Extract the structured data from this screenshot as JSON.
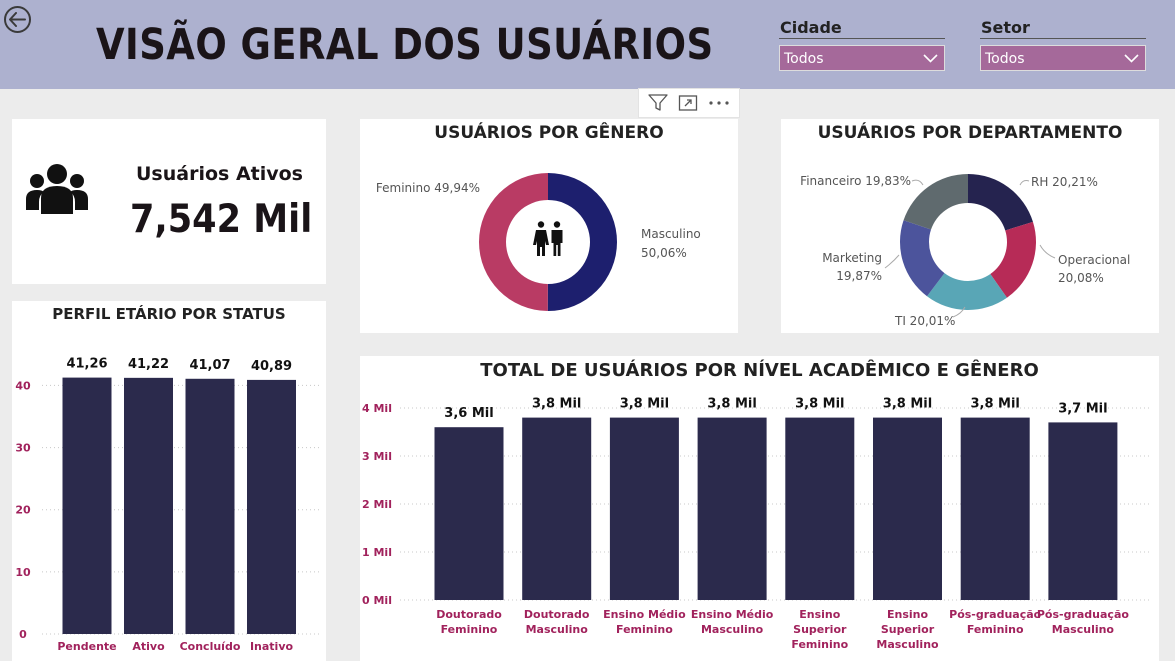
{
  "header": {
    "title": "VISÃO GERAL DOS USUÁRIOS",
    "back_icon": "back-arrow-icon",
    "bg_color": "#adb1cf"
  },
  "filters": [
    {
      "label": "Cidade",
      "value": "Todos"
    },
    {
      "label": "Setor",
      "value": "Todos"
    }
  ],
  "visual_header": {
    "icons": [
      "filter-icon",
      "focus-mode-icon",
      "more-options-icon"
    ]
  },
  "kpi": {
    "label": "Usuários Ativos",
    "value": "7,542 Mil",
    "icon": "users-icon"
  },
  "gender_chart": {
    "title": "USUÁRIOS POR GÊNERO",
    "icon": "man-woman-icon"
  },
  "department_chart": {
    "title": "USUÁRIOS POR DEPARTAMENTO"
  },
  "age_chart": {
    "title": "PERFIL ETÁRIO POR STATUS"
  },
  "academic_chart": {
    "title": "TOTAL DE USUÁRIOS POR NÍVEL ACADÊMICO E GÊNERO"
  },
  "colors": {
    "bar": "#2b2a4c",
    "axis_label": "#a1225c",
    "female": "#b93b64",
    "male": "#1d1f6e"
  },
  "chart_data": [
    {
      "id": "gender",
      "type": "pie",
      "title": "USUÁRIOS POR GÊNERO",
      "slices": [
        {
          "name": "Masculino",
          "value": 50.06,
          "label": "Masculino 50,06%",
          "color": "#1d1f6e"
        },
        {
          "name": "Feminino",
          "value": 49.94,
          "label": "Feminino 49,94%",
          "color": "#b93b64"
        }
      ]
    },
    {
      "id": "department",
      "type": "pie",
      "title": "USUÁRIOS POR DEPARTAMENTO",
      "slices": [
        {
          "name": "RH",
          "value": 20.21,
          "label": "RH 20,21%",
          "color": "#25234f"
        },
        {
          "name": "Operacional",
          "value": 20.08,
          "label": "Operacional 20,08%",
          "color": "#b72b57"
        },
        {
          "name": "TI",
          "value": 20.01,
          "label": "TI 20,01%",
          "color": "#59a6b6"
        },
        {
          "name": "Marketing",
          "value": 19.87,
          "label": "Marketing 19,87%",
          "color": "#4c549c"
        },
        {
          "name": "Financeiro",
          "value": 19.83,
          "label": "Financeiro 19,83%",
          "color": "#5f6a6e"
        }
      ]
    },
    {
      "id": "age",
      "type": "bar",
      "title": "PERFIL ETÁRIO POR STATUS",
      "categories": [
        "Pendente",
        "Ativo",
        "Concluído",
        "Inativo"
      ],
      "values": [
        41.26,
        41.22,
        41.07,
        40.89
      ],
      "data_labels": [
        "41,26",
        "41,22",
        "41,07",
        "40,89"
      ],
      "ylim": [
        0,
        42
      ],
      "yticks": [
        0,
        10,
        20,
        30,
        40
      ]
    },
    {
      "id": "academic",
      "type": "bar",
      "title": "TOTAL DE USUÁRIOS POR NÍVEL ACADÊMICO E GÊNERO",
      "categories": [
        "Doutorado Feminino",
        "Doutorado Masculino",
        "Ensino Médio Feminino",
        "Ensino Médio Masculino",
        "Ensino Superior Feminino",
        "Ensino Superior Masculino",
        "Pós-graduação Feminino",
        "Pós-graduação Masculino"
      ],
      "category_lines": [
        [
          "Doutorado",
          "Feminino"
        ],
        [
          "Doutorado",
          "Masculino"
        ],
        [
          "Ensino Médio",
          "Feminino"
        ],
        [
          "Ensino Médio",
          "Masculino"
        ],
        [
          "Ensino",
          "Superior",
          "Feminino"
        ],
        [
          "Ensino",
          "Superior",
          "Masculino"
        ],
        [
          "Pós-graduação",
          "Feminino"
        ],
        [
          "Pós-graduação",
          "Masculino"
        ]
      ],
      "values": [
        3.6,
        3.8,
        3.8,
        3.8,
        3.8,
        3.8,
        3.8,
        3.7
      ],
      "data_labels": [
        "3,6 Mil",
        "3,8 Mil",
        "3,8 Mil",
        "3,8 Mil",
        "3,8 Mil",
        "3,8 Mil",
        "3,8 Mil",
        "3,7 Mil"
      ],
      "ylim": [
        0,
        4
      ],
      "yticks": [
        0,
        1,
        2,
        3,
        4
      ],
      "ytick_labels": [
        "0 Mil",
        "1 Mil",
        "2 Mil",
        "3 Mil",
        "4 Mil"
      ]
    }
  ]
}
